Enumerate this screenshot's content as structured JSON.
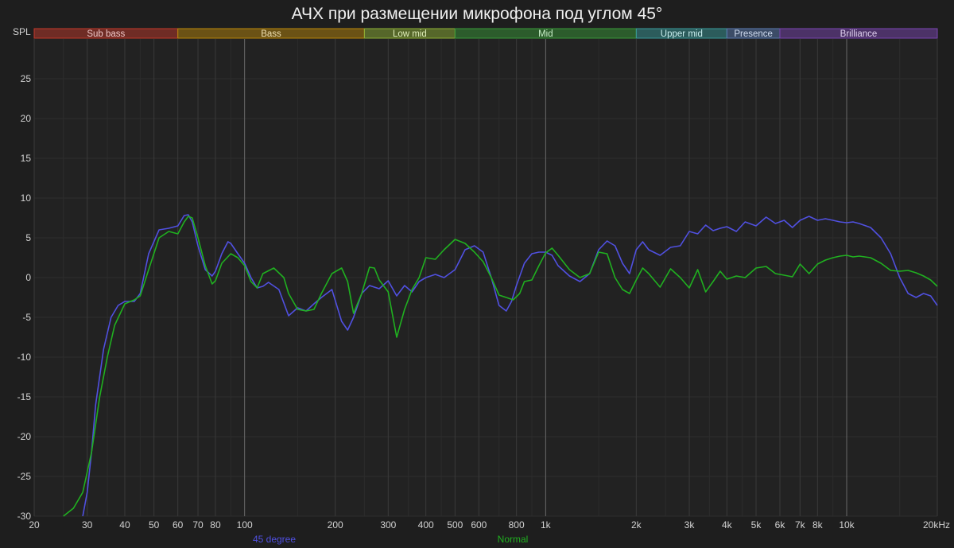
{
  "chart_data": {
    "type": "line",
    "title": "АЧХ при размещении микрофона под углом 45°",
    "ylabel": "SPL",
    "xscale": "log",
    "xlim": [
      20,
      20000
    ],
    "ylim": [
      -30,
      30
    ],
    "grid": true,
    "y_ticks": [
      {
        "value": 25,
        "label": "25"
      },
      {
        "value": 20,
        "label": "20"
      },
      {
        "value": 15,
        "label": "15"
      },
      {
        "value": 10,
        "label": "10"
      },
      {
        "value": 5,
        "label": "5"
      },
      {
        "value": 0,
        "label": "0"
      },
      {
        "value": -5,
        "label": "-5"
      },
      {
        "value": -10,
        "label": "-10"
      },
      {
        "value": -15,
        "label": "-15"
      },
      {
        "value": -20,
        "label": "-20"
      },
      {
        "value": -25,
        "label": "-25"
      },
      {
        "value": -30,
        "label": "-30"
      }
    ],
    "x_ticks": [
      {
        "value": 20,
        "label": "20"
      },
      {
        "value": 30,
        "label": "30"
      },
      {
        "value": 40,
        "label": "40"
      },
      {
        "value": 50,
        "label": "50"
      },
      {
        "value": 60,
        "label": "60"
      },
      {
        "value": 70,
        "label": "70"
      },
      {
        "value": 80,
        "label": "80"
      },
      {
        "value": 100,
        "label": "100"
      },
      {
        "value": 200,
        "label": "200"
      },
      {
        "value": 300,
        "label": "300"
      },
      {
        "value": 400,
        "label": "400"
      },
      {
        "value": 500,
        "label": "500"
      },
      {
        "value": 600,
        "label": "600"
      },
      {
        "value": 800,
        "label": "800"
      },
      {
        "value": 1000,
        "label": "1k"
      },
      {
        "value": 2000,
        "label": "2k"
      },
      {
        "value": 3000,
        "label": "3k"
      },
      {
        "value": 4000,
        "label": "4k"
      },
      {
        "value": 5000,
        "label": "5k"
      },
      {
        "value": 6000,
        "label": "6k"
      },
      {
        "value": 7000,
        "label": "7k"
      },
      {
        "value": 8000,
        "label": "8k"
      },
      {
        "value": 10000,
        "label": "10k"
      },
      {
        "value": 20000,
        "label": "20kHz"
      }
    ],
    "minor_grid": [
      25,
      35,
      45,
      90,
      150,
      250,
      350,
      450,
      700,
      900,
      1500,
      2500,
      3500,
      4500,
      9000,
      15000
    ],
    "major_grid": [
      100,
      1000,
      10000
    ],
    "bands": [
      {
        "name": "Sub bass",
        "from": 20,
        "to": 60,
        "color": "#c0392b",
        "text_color": "#f0c8c8"
      },
      {
        "name": "Bass",
        "from": 60,
        "to": 250,
        "color": "#b8860b",
        "text_color": "#f0e0b0"
      },
      {
        "name": "Low mid",
        "from": 250,
        "to": 500,
        "color": "#8db036",
        "text_color": "#dfeeb8"
      },
      {
        "name": "Mid",
        "from": 500,
        "to": 2000,
        "color": "#3a9a3a",
        "text_color": "#c8efc8"
      },
      {
        "name": "Upper mid",
        "from": 2000,
        "to": 4000,
        "color": "#3a9a9a",
        "text_color": "#c8eeee"
      },
      {
        "name": "Presence",
        "from": 4000,
        "to": 6000,
        "color": "#5a7ab0",
        "text_color": "#d0dcf0"
      },
      {
        "name": "Brilliance",
        "from": 6000,
        "to": 20000,
        "color": "#7a45b0",
        "text_color": "#e0d0f0"
      }
    ],
    "series": [
      {
        "name": "45 degree",
        "color": "#5050e0",
        "x": [
          29,
          30,
          31,
          32,
          34,
          36,
          38,
          40,
          43,
          45,
          48,
          52,
          56,
          60,
          63,
          65,
          67,
          70,
          74,
          78,
          80,
          84,
          88,
          90,
          95,
          100,
          105,
          110,
          115,
          120,
          130,
          140,
          150,
          160,
          170,
          180,
          195,
          210,
          220,
          230,
          245,
          260,
          280,
          300,
          320,
          340,
          360,
          380,
          400,
          430,
          460,
          500,
          540,
          580,
          620,
          660,
          700,
          740,
          770,
          800,
          850,
          900,
          950,
          1000,
          1050,
          1100,
          1200,
          1300,
          1400,
          1500,
          1600,
          1700,
          1800,
          1900,
          2000,
          2100,
          2200,
          2400,
          2600,
          2800,
          3000,
          3200,
          3400,
          3600,
          3800,
          4000,
          4300,
          4600,
          5000,
          5400,
          5800,
          6200,
          6600,
          7000,
          7500,
          8000,
          8500,
          9000,
          9500,
          10000,
          10500,
          11000,
          12000,
          13000,
          14000,
          15000,
          16000,
          17000,
          18000,
          19000,
          20000
        ],
        "y": [
          -30,
          -27,
          -22,
          -16,
          -9,
          -5,
          -3.5,
          -3,
          -3,
          -2,
          3,
          6,
          6.2,
          6.5,
          7.8,
          7.9,
          7,
          4,
          1,
          0.2,
          0.8,
          3,
          4.5,
          4.3,
          3,
          1.8,
          0,
          -1.3,
          -1.1,
          -0.6,
          -1.5,
          -4.8,
          -3.8,
          -4.2,
          -3.3,
          -2.5,
          -1.5,
          -5.5,
          -6.6,
          -5,
          -2,
          -1,
          -1.4,
          -0.4,
          -2.3,
          -1,
          -1.8,
          -0.5,
          0,
          0.4,
          0,
          1,
          3.5,
          4,
          3.2,
          0,
          -3.5,
          -4.2,
          -3,
          -1,
          1.8,
          3,
          3.2,
          3.2,
          2.8,
          1.5,
          0.2,
          -0.5,
          0.5,
          3.5,
          4.6,
          4,
          1.8,
          0.5,
          3.5,
          4.5,
          3.5,
          2.8,
          3.8,
          4,
          5.8,
          5.5,
          6.6,
          5.9,
          6.2,
          6.4,
          5.8,
          7,
          6.5,
          7.6,
          6.8,
          7.2,
          6.3,
          7.2,
          7.7,
          7.2,
          7.4,
          7.2,
          7,
          6.9,
          7,
          6.8,
          6.3,
          5,
          3,
          0,
          -2,
          -2.5,
          -2,
          -2.3,
          -3.5
        ]
      },
      {
        "name": "Normal",
        "color": "#20b020",
        "x": [
          25,
          27,
          29,
          31,
          33,
          35,
          37,
          40,
          43,
          45,
          48,
          52,
          56,
          60,
          63,
          65,
          67,
          70,
          74,
          78,
          80,
          84,
          90,
          95,
          100,
          105,
          110,
          115,
          125,
          135,
          140,
          150,
          160,
          170,
          180,
          195,
          210,
          220,
          230,
          245,
          260,
          270,
          280,
          300,
          320,
          340,
          360,
          380,
          400,
          430,
          460,
          500,
          540,
          580,
          620,
          660,
          700,
          740,
          780,
          820,
          850,
          900,
          950,
          1000,
          1050,
          1100,
          1200,
          1300,
          1400,
          1500,
          1600,
          1700,
          1800,
          1900,
          2000,
          2100,
          2200,
          2400,
          2600,
          2800,
          3000,
          3200,
          3400,
          3600,
          3800,
          4000,
          4300,
          4600,
          5000,
          5400,
          5800,
          6200,
          6600,
          7000,
          7500,
          8000,
          8500,
          9000,
          9500,
          10000,
          10500,
          11000,
          12000,
          13000,
          14000,
          15000,
          16000,
          17000,
          18000,
          19000,
          20000
        ],
        "y": [
          -30,
          -29,
          -27,
          -22,
          -15,
          -10,
          -6,
          -3.3,
          -2.8,
          -2.3,
          1,
          5,
          5.8,
          5.5,
          7,
          7.7,
          7.5,
          5,
          1.5,
          -0.8,
          -0.4,
          1.8,
          3,
          2.5,
          1.5,
          -0.5,
          -1.3,
          0.5,
          1.2,
          0,
          -2,
          -4,
          -4.2,
          -4,
          -2,
          0.5,
          1.2,
          -0.5,
          -4.5,
          -2,
          1.3,
          1.2,
          -0.3,
          -1.8,
          -7.5,
          -4,
          -1.5,
          0,
          2.5,
          2.3,
          3.5,
          4.8,
          4.3,
          3.2,
          2,
          0,
          -2.2,
          -2.5,
          -2.8,
          -2,
          -0.5,
          -0.3,
          1.5,
          3.1,
          3.7,
          2.8,
          1,
          0,
          0.5,
          3.2,
          3,
          0,
          -1.5,
          -2,
          -0.3,
          1.2,
          0.5,
          -1.2,
          1.1,
          0,
          -1.3,
          1,
          -1.8,
          -0.5,
          0.8,
          -0.2,
          0.2,
          0,
          1.2,
          1.4,
          0.5,
          0.3,
          0.1,
          1.7,
          0.5,
          1.7,
          2.2,
          2.5,
          2.7,
          2.8,
          2.6,
          2.7,
          2.5,
          1.8,
          0.9,
          0.8,
          0.9,
          0.6,
          0.2,
          -0.3,
          -1.1
        ]
      }
    ]
  }
}
